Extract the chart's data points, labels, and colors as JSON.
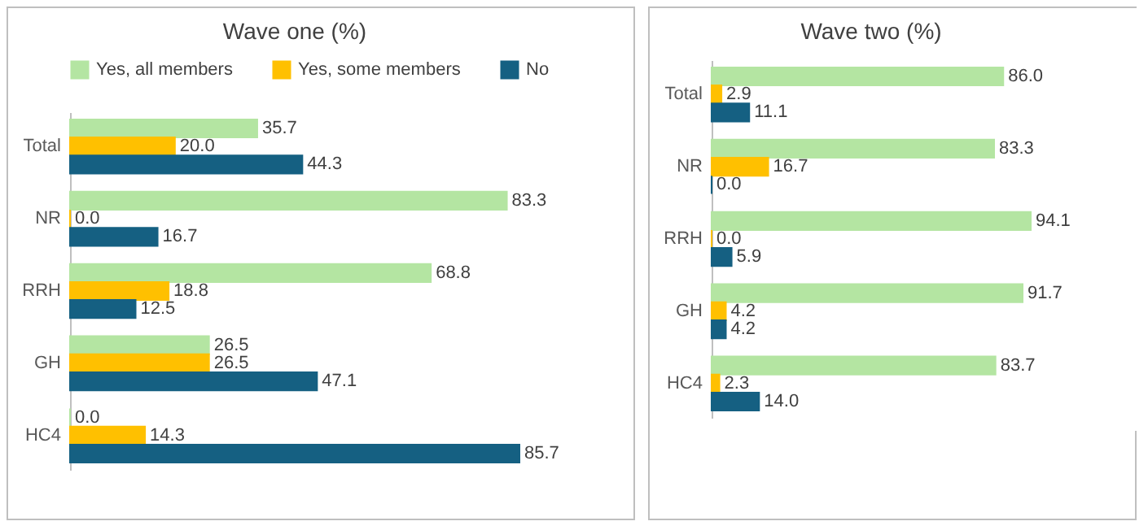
{
  "chart_data": [
    {
      "type": "bar",
      "orientation": "horizontal",
      "title": "Wave one  (%)",
      "categories": [
        "Total",
        "NR",
        "RRH",
        "GH",
        "HC4"
      ],
      "series": [
        {
          "name": "Yes, all members",
          "color": "#b4e5a2",
          "values": [
            35.7,
            83.3,
            68.8,
            26.5,
            0.0
          ],
          "value_labels": [
            "35.7",
            "83.3",
            "68.8",
            "26.5",
            "0.0"
          ]
        },
        {
          "name": "Yes, some members",
          "color": "#ffc000",
          "values": [
            20.0,
            0.0,
            18.8,
            26.5,
            14.3
          ],
          "value_labels": [
            "20.0",
            "0.0",
            "18.8",
            "26.5",
            "14.3"
          ]
        },
        {
          "name": "No",
          "color": "#156082",
          "values": [
            44.3,
            16.7,
            12.5,
            47.1,
            85.7
          ],
          "value_labels": [
            "44.3",
            "16.7",
            "12.5",
            "47.1",
            "85.7"
          ]
        }
      ],
      "legend": "top",
      "grid": false
    },
    {
      "type": "bar",
      "orientation": "horizontal",
      "title": "Wave two  (%)",
      "categories": [
        "Total",
        "NR",
        "RRH",
        "GH",
        "HC4"
      ],
      "series": [
        {
          "color": "#b4e5a2",
          "values": [
            86.0,
            83.3,
            94.1,
            91.7,
            83.7
          ],
          "value_labels": [
            "86.0",
            "83.3",
            "94.1",
            "91.7",
            "83.7"
          ]
        },
        {
          "color": "#ffc000",
          "values": [
            2.9,
            16.7,
            0.0,
            4.2,
            2.3
          ],
          "value_labels": [
            "2.9",
            "16.7",
            "0.0",
            "4.2",
            "2.3"
          ]
        },
        {
          "color": "#156082",
          "values": [
            11.1,
            0.0,
            5.9,
            4.2,
            14.0
          ],
          "value_labels": [
            "11.1",
            "0.0",
            "5.9",
            "4.2",
            "14.0"
          ]
        }
      ],
      "legend": false,
      "grid": false
    }
  ]
}
